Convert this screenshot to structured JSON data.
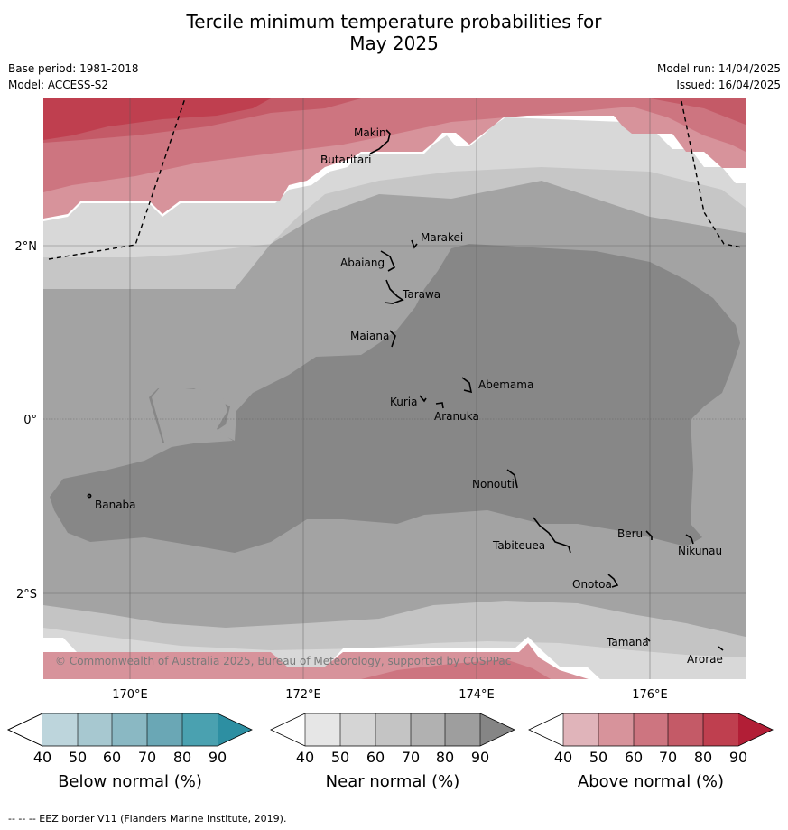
{
  "title_line1": "Tercile minimum temperature probabilities for",
  "title_line2": "May 2025",
  "meta": {
    "base_period": "Base period: 1981-2018",
    "model": "Model: ACCESS-S2",
    "model_run": "Model run: 14/04/2025",
    "issued": "Issued: 16/04/2025"
  },
  "map": {
    "lon_labels": [
      "170°E",
      "172°E",
      "174°E",
      "176°E"
    ],
    "lat_labels": [
      "2°N",
      "0°",
      "2°S"
    ],
    "copyright": "© Commonwealth of Australia 2025, Bureau of Meteorology, supported by COSPPac",
    "places": [
      "Makin",
      "Butaritari",
      "Marakei",
      "Abaiang",
      "Tarawa",
      "Maiana",
      "Abemama",
      "Kuria",
      "Aranuka",
      "Banaba",
      "Nonouti",
      "Beru",
      "Nikunau",
      "Tabiteuea",
      "Onotoa",
      "Tamana",
      "Arorae"
    ]
  },
  "colorbars": [
    {
      "label": "Below normal (%)",
      "ticks": [
        "40",
        "50",
        "60",
        "70",
        "80",
        "90"
      ],
      "colors": [
        "#ffffff",
        "#bdd5dc",
        "#a7c8d0",
        "#8ab8c3",
        "#6aa7b5",
        "#4aa1b0",
        "#2d8fa2"
      ]
    },
    {
      "label": "Near normal (%)",
      "ticks": [
        "40",
        "50",
        "60",
        "70",
        "80",
        "90"
      ],
      "colors": [
        "#ffffff",
        "#e6e6e6",
        "#d5d5d5",
        "#c4c4c4",
        "#b1b1b1",
        "#9e9e9e",
        "#858585"
      ]
    },
    {
      "label": "Above normal (%)",
      "ticks": [
        "40",
        "50",
        "60",
        "70",
        "80",
        "90"
      ],
      "colors": [
        "#ffffff",
        "#e0b4ba",
        "#d7939b",
        "#cd7580",
        "#c45a67",
        "#bf3f4f",
        "#b21e36"
      ]
    }
  ],
  "footnote": "-- -- -- EEZ border V11 (Flanders Marine Institute, 2019)."
}
